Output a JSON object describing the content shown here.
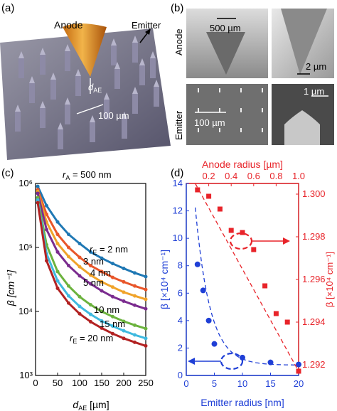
{
  "panels": {
    "a": {
      "label": "(a)",
      "anode": "Anode",
      "emitter": "Emitter",
      "dae_main": "d",
      "dae_sub": "AE",
      "scale": "100 µm"
    },
    "b": {
      "label": "(b)",
      "anode_side": "Anode",
      "emitter_side": "Emitter",
      "scale_500": "500 µm",
      "scale_2": "2 µm",
      "scale_100": "100 µm",
      "scale_1": "1 µm"
    },
    "c": {
      "label": "(c)"
    },
    "d": {
      "label": "(d)"
    }
  },
  "chart_data": [
    {
      "type": "scatter",
      "panel": "c",
      "annotation_rA": "r",
      "annotation_rA_sub": "A",
      "annotation_rA_value": " = 500 nm",
      "ylabel": "β [cm⁻¹]",
      "xlabel_main": "d",
      "xlabel_sub": "AE",
      "xlabel_unit": " [µm]",
      "y_scale": "log",
      "ylim": [
        1000,
        1000000
      ],
      "xlim": [
        0,
        250
      ],
      "x_ticks": [
        "0",
        "50",
        "100",
        "150",
        "200",
        "250"
      ],
      "y_ticks": [
        "10³",
        "10⁴",
        "10⁵",
        "10⁶"
      ],
      "series": [
        {
          "label": "r",
          "label_sub": "E",
          "label_val": " = 2 nm",
          "color": "#1f78b4",
          "x": [
            5,
            25,
            50,
            75,
            100,
            125,
            150,
            175,
            200,
            225,
            250
          ],
          "y": [
            900000,
            450000,
            250000,
            160000,
            115000,
            85000,
            68000,
            56000,
            47000,
            40000,
            35000
          ]
        },
        {
          "label": "3 nm",
          "color": "#e8562a",
          "x": [
            5,
            25,
            50,
            75,
            100,
            125,
            150,
            175,
            200,
            225,
            250
          ],
          "y": [
            800000,
            330000,
            160000,
            100000,
            70000,
            52000,
            42000,
            34000,
            29000,
            25000,
            22000
          ]
        },
        {
          "label": "4 nm",
          "color": "#f0a32a",
          "x": [
            5,
            25,
            50,
            75,
            100,
            125,
            150,
            175,
            200,
            225,
            250
          ],
          "y": [
            750000,
            250000,
            115000,
            72000,
            50000,
            37000,
            29000,
            24000,
            20000,
            17500,
            15500
          ]
        },
        {
          "label": "5 nm",
          "color": "#7b2c8f",
          "x": [
            5,
            25,
            50,
            75,
            100,
            125,
            150,
            175,
            200,
            225,
            250
          ],
          "y": [
            700000,
            190000,
            85000,
            52000,
            36000,
            27000,
            21000,
            17000,
            14500,
            12500,
            11000
          ]
        },
        {
          "label": "10 nm",
          "color": "#6cb33e",
          "x": [
            5,
            25,
            50,
            75,
            100,
            125,
            150,
            175,
            200,
            225,
            250
          ],
          "y": [
            600000,
            110000,
            42000,
            25000,
            17000,
            12700,
            10000,
            8300,
            7000,
            6100,
            5400
          ]
        },
        {
          "label": "15 nm",
          "color": "#3fb9df",
          "x": [
            5,
            25,
            50,
            75,
            100,
            125,
            150,
            175,
            200,
            225,
            250
          ],
          "y": [
            550000,
            80000,
            30000,
            17500,
            12000,
            9000,
            7100,
            5900,
            5000,
            4300,
            3800
          ]
        },
        {
          "label": "r",
          "label_sub": "E",
          "label_val": " = 20 nm",
          "color": "#b22222",
          "x": [
            5,
            25,
            50,
            75,
            100,
            125,
            150,
            175,
            200,
            225,
            250
          ],
          "y": [
            500000,
            62000,
            23000,
            13500,
            9200,
            6900,
            5500,
            4500,
            3800,
            3300,
            2900
          ]
        }
      ]
    },
    {
      "type": "scatter",
      "panel": "d",
      "xlabel": "Emitter radius [nm]",
      "xlim": [
        0,
        20
      ],
      "x_ticks": [
        "0",
        "5",
        "10",
        "15",
        "20"
      ],
      "ylabel_left": "β  [×10⁴ cm⁻¹]",
      "ylim_left": [
        0,
        14
      ],
      "y_ticks_left": [
        "0",
        "2",
        "4",
        "6",
        "8",
        "10",
        "12",
        "14"
      ],
      "x2label": "Anode radius [µm]",
      "x2lim": [
        0,
        1.0
      ],
      "x2_ticks": [
        "0.2",
        "0.4",
        "0.6",
        "0.8",
        "1.0"
      ],
      "ylabel_right": "β [×10⁴ cm⁻¹]",
      "ylim_right": [
        1.2915,
        1.3005
      ],
      "y_ticks_right": [
        "1.292",
        "1.294",
        "1.296",
        "1.298",
        "1.300"
      ],
      "series": [
        {
          "name": "Emitter radius",
          "axis": "left/bottom",
          "color": "#1f3fd6",
          "x": [
            2,
            3,
            4,
            5,
            10,
            15,
            20
          ],
          "y": [
            8.1,
            6.2,
            4.0,
            2.3,
            1.3,
            0.95,
            0.8
          ]
        },
        {
          "name": "Anode radius",
          "axis": "right/top",
          "color": "#e8242a",
          "x": [
            0.1,
            0.2,
            0.3,
            0.4,
            0.5,
            0.6,
            0.7,
            0.8,
            0.9,
            1.0
          ],
          "y": [
            1.3002,
            1.2999,
            1.2993,
            1.2983,
            1.2982,
            1.2974,
            1.2957,
            1.2944,
            1.294,
            1.2917
          ]
        }
      ]
    }
  ]
}
